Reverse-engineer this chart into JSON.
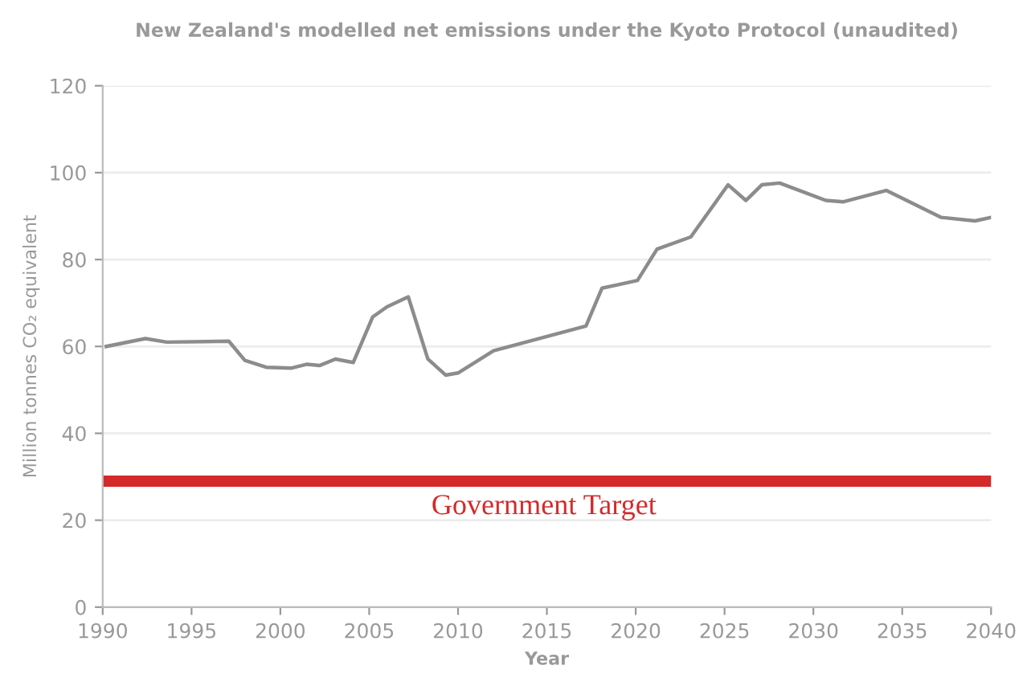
{
  "chart_data": {
    "type": "line",
    "title": "New Zealand's modelled net emissions under the Kyoto Protocol (unaudited)",
    "xlabel": "Year",
    "ylabel": "Million tonnes CO₂ equivalent",
    "series": [
      {
        "color": "#8c8c8c",
        "x": [
          1990.2,
          1992.4,
          1993.6,
          1997.1,
          1998,
          1999.2,
          2000.6,
          2001.5,
          2002.2,
          2003.1,
          2004.1,
          2005.2,
          2006,
          2007.2,
          2008.3,
          2009.3,
          2010,
          2012,
          2017.2,
          2018.1,
          2020.1,
          2021.2,
          2023.1,
          2025.2,
          2026.2,
          2027.1,
          2028.1,
          2030.7,
          2031.7,
          2034.1,
          2037.2,
          2039.1,
          2040
        ],
        "values": [
          60,
          61.8,
          61,
          61.2,
          56.8,
          55.2,
          55,
          55.9,
          55.6,
          57.1,
          56.3,
          66.8,
          69.1,
          71.4,
          57.1,
          53.4,
          53.9,
          59,
          64.7,
          73.4,
          75.2,
          82.4,
          85.2,
          97.2,
          93.6,
          97.2,
          97.6,
          93.6,
          93.3,
          95.9,
          89.7,
          88.9,
          89.7
        ]
      }
    ],
    "xlim": [
      1990,
      2040
    ],
    "xticks": [
      1990,
      1995,
      2000,
      2005,
      2010,
      2015,
      2020,
      2025,
      2030,
      2035,
      2040
    ],
    "ylim": [
      0,
      120
    ],
    "yticks": [
      0,
      20,
      40,
      60,
      80,
      100,
      120
    ],
    "grid": "y",
    "ref_lines": [
      {
        "axis": "y",
        "value": 29,
        "label": "Government Target",
        "color": "#d42a2a"
      }
    ]
  }
}
